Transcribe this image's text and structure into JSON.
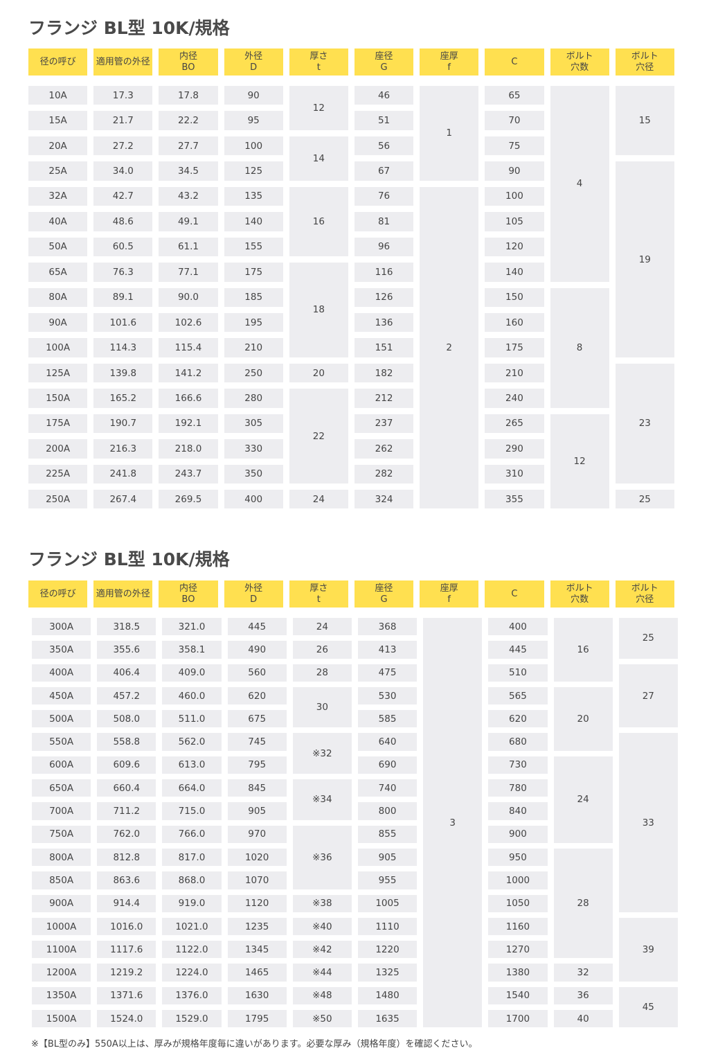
{
  "table1": {
    "title": "フランジ BL型 10K/規格",
    "headers": [
      [
        "径の呼び"
      ],
      [
        "適用管の外径"
      ],
      [
        "内径",
        "BO"
      ],
      [
        "外径",
        "D"
      ],
      [
        "厚さ",
        "t"
      ],
      [
        "座径",
        "G"
      ],
      [
        "座厚",
        "f"
      ],
      [
        "C"
      ],
      [
        "ボルト",
        "穴数"
      ],
      [
        "ボルト",
        "穴径"
      ]
    ],
    "cells": [
      {
        "t": "10A",
        "c": 1,
        "r": 1
      },
      {
        "t": "17.3",
        "c": 2,
        "r": 1
      },
      {
        "t": "17.8",
        "c": 3,
        "r": 1
      },
      {
        "t": "90",
        "c": 4,
        "r": 1
      },
      {
        "t": "12",
        "c": 5,
        "r": 1,
        "rs": 2
      },
      {
        "t": "46",
        "c": 6,
        "r": 1
      },
      {
        "t": "1",
        "c": 7,
        "r": 1,
        "rs": 4
      },
      {
        "t": "65",
        "c": 8,
        "r": 1
      },
      {
        "t": "4",
        "c": 9,
        "r": 1,
        "rs": 8
      },
      {
        "t": "15",
        "c": 10,
        "r": 1,
        "rs": 3
      },
      {
        "t": "15A",
        "c": 1,
        "r": 2
      },
      {
        "t": "21.7",
        "c": 2,
        "r": 2
      },
      {
        "t": "22.2",
        "c": 3,
        "r": 2
      },
      {
        "t": "95",
        "c": 4,
        "r": 2
      },
      {
        "t": "51",
        "c": 6,
        "r": 2
      },
      {
        "t": "70",
        "c": 8,
        "r": 2
      },
      {
        "t": "20A",
        "c": 1,
        "r": 3
      },
      {
        "t": "27.2",
        "c": 2,
        "r": 3
      },
      {
        "t": "27.7",
        "c": 3,
        "r": 3
      },
      {
        "t": "100",
        "c": 4,
        "r": 3
      },
      {
        "t": "14",
        "c": 5,
        "r": 3,
        "rs": 2
      },
      {
        "t": "56",
        "c": 6,
        "r": 3
      },
      {
        "t": "75",
        "c": 8,
        "r": 3
      },
      {
        "t": "25A",
        "c": 1,
        "r": 4
      },
      {
        "t": "34.0",
        "c": 2,
        "r": 4
      },
      {
        "t": "34.5",
        "c": 3,
        "r": 4
      },
      {
        "t": "125",
        "c": 4,
        "r": 4
      },
      {
        "t": "67",
        "c": 6,
        "r": 4
      },
      {
        "t": "90",
        "c": 8,
        "r": 4
      },
      {
        "t": "19",
        "c": 10,
        "r": 4,
        "rs": 8
      },
      {
        "t": "32A",
        "c": 1,
        "r": 5
      },
      {
        "t": "42.7",
        "c": 2,
        "r": 5
      },
      {
        "t": "43.2",
        "c": 3,
        "r": 5
      },
      {
        "t": "135",
        "c": 4,
        "r": 5
      },
      {
        "t": "16",
        "c": 5,
        "r": 5,
        "rs": 3
      },
      {
        "t": "76",
        "c": 6,
        "r": 5
      },
      {
        "t": "2",
        "c": 7,
        "r": 5,
        "rs": 13
      },
      {
        "t": "100",
        "c": 8,
        "r": 5
      },
      {
        "t": "40A",
        "c": 1,
        "r": 6
      },
      {
        "t": "48.6",
        "c": 2,
        "r": 6
      },
      {
        "t": "49.1",
        "c": 3,
        "r": 6
      },
      {
        "t": "140",
        "c": 4,
        "r": 6
      },
      {
        "t": "81",
        "c": 6,
        "r": 6
      },
      {
        "t": "105",
        "c": 8,
        "r": 6
      },
      {
        "t": "50A",
        "c": 1,
        "r": 7
      },
      {
        "t": "60.5",
        "c": 2,
        "r": 7
      },
      {
        "t": "61.1",
        "c": 3,
        "r": 7
      },
      {
        "t": "155",
        "c": 4,
        "r": 7
      },
      {
        "t": "96",
        "c": 6,
        "r": 7
      },
      {
        "t": "120",
        "c": 8,
        "r": 7
      },
      {
        "t": "65A",
        "c": 1,
        "r": 8
      },
      {
        "t": "76.3",
        "c": 2,
        "r": 8
      },
      {
        "t": "77.1",
        "c": 3,
        "r": 8
      },
      {
        "t": "175",
        "c": 4,
        "r": 8
      },
      {
        "t": "18",
        "c": 5,
        "r": 8,
        "rs": 4
      },
      {
        "t": "116",
        "c": 6,
        "r": 8
      },
      {
        "t": "140",
        "c": 8,
        "r": 8
      },
      {
        "t": "80A",
        "c": 1,
        "r": 9
      },
      {
        "t": "89.1",
        "c": 2,
        "r": 9
      },
      {
        "t": "90.0",
        "c": 3,
        "r": 9
      },
      {
        "t": "185",
        "c": 4,
        "r": 9
      },
      {
        "t": "126",
        "c": 6,
        "r": 9
      },
      {
        "t": "150",
        "c": 8,
        "r": 9
      },
      {
        "t": "8",
        "c": 9,
        "r": 9,
        "rs": 5
      },
      {
        "t": "90A",
        "c": 1,
        "r": 10
      },
      {
        "t": "101.6",
        "c": 2,
        "r": 10
      },
      {
        "t": "102.6",
        "c": 3,
        "r": 10
      },
      {
        "t": "195",
        "c": 4,
        "r": 10
      },
      {
        "t": "136",
        "c": 6,
        "r": 10
      },
      {
        "t": "160",
        "c": 8,
        "r": 10
      },
      {
        "t": "100A",
        "c": 1,
        "r": 11
      },
      {
        "t": "114.3",
        "c": 2,
        "r": 11
      },
      {
        "t": "115.4",
        "c": 3,
        "r": 11
      },
      {
        "t": "210",
        "c": 4,
        "r": 11
      },
      {
        "t": "151",
        "c": 6,
        "r": 11
      },
      {
        "t": "175",
        "c": 8,
        "r": 11
      },
      {
        "t": "125A",
        "c": 1,
        "r": 12
      },
      {
        "t": "139.8",
        "c": 2,
        "r": 12
      },
      {
        "t": "141.2",
        "c": 3,
        "r": 12
      },
      {
        "t": "250",
        "c": 4,
        "r": 12
      },
      {
        "t": "20",
        "c": 5,
        "r": 12
      },
      {
        "t": "182",
        "c": 6,
        "r": 12
      },
      {
        "t": "210",
        "c": 8,
        "r": 12
      },
      {
        "t": "23",
        "c": 10,
        "r": 12,
        "rs": 5
      },
      {
        "t": "150A",
        "c": 1,
        "r": 13
      },
      {
        "t": "165.2",
        "c": 2,
        "r": 13
      },
      {
        "t": "166.6",
        "c": 3,
        "r": 13
      },
      {
        "t": "280",
        "c": 4,
        "r": 13
      },
      {
        "t": "22",
        "c": 5,
        "r": 13,
        "rs": 4
      },
      {
        "t": "212",
        "c": 6,
        "r": 13
      },
      {
        "t": "240",
        "c": 8,
        "r": 13
      },
      {
        "t": "175A",
        "c": 1,
        "r": 14
      },
      {
        "t": "190.7",
        "c": 2,
        "r": 14
      },
      {
        "t": "192.1",
        "c": 3,
        "r": 14
      },
      {
        "t": "305",
        "c": 4,
        "r": 14
      },
      {
        "t": "237",
        "c": 6,
        "r": 14
      },
      {
        "t": "265",
        "c": 8,
        "r": 14
      },
      {
        "t": "12",
        "c": 9,
        "r": 14,
        "rs": 4
      },
      {
        "t": "200A",
        "c": 1,
        "r": 15
      },
      {
        "t": "216.3",
        "c": 2,
        "r": 15
      },
      {
        "t": "218.0",
        "c": 3,
        "r": 15
      },
      {
        "t": "330",
        "c": 4,
        "r": 15
      },
      {
        "t": "262",
        "c": 6,
        "r": 15
      },
      {
        "t": "290",
        "c": 8,
        "r": 15
      },
      {
        "t": "225A",
        "c": 1,
        "r": 16
      },
      {
        "t": "241.8",
        "c": 2,
        "r": 16
      },
      {
        "t": "243.7",
        "c": 3,
        "r": 16
      },
      {
        "t": "350",
        "c": 4,
        "r": 16
      },
      {
        "t": "282",
        "c": 6,
        "r": 16
      },
      {
        "t": "310",
        "c": 8,
        "r": 16
      },
      {
        "t": "250A",
        "c": 1,
        "r": 17
      },
      {
        "t": "267.4",
        "c": 2,
        "r": 17
      },
      {
        "t": "269.5",
        "c": 3,
        "r": 17
      },
      {
        "t": "400",
        "c": 4,
        "r": 17
      },
      {
        "t": "24",
        "c": 5,
        "r": 17
      },
      {
        "t": "324",
        "c": 6,
        "r": 17
      },
      {
        "t": "355",
        "c": 8,
        "r": 17
      },
      {
        "t": "25",
        "c": 10,
        "r": 17
      }
    ]
  },
  "table2": {
    "title": "フランジ BL型 10K/規格",
    "headers": [
      [
        "径の呼び"
      ],
      [
        "適用管の外径"
      ],
      [
        "内径",
        "BO"
      ],
      [
        "外径",
        "D"
      ],
      [
        "厚さ",
        "t"
      ],
      [
        "座径",
        "G"
      ],
      [
        "座厚",
        "f"
      ],
      [
        "C"
      ],
      [
        "ボルト",
        "穴数"
      ],
      [
        "ボルト",
        "穴径"
      ]
    ],
    "cells": [
      {
        "t": "300A",
        "c": 1,
        "r": 1
      },
      {
        "t": "318.5",
        "c": 2,
        "r": 1
      },
      {
        "t": "321.0",
        "c": 3,
        "r": 1
      },
      {
        "t": "445",
        "c": 4,
        "r": 1
      },
      {
        "t": "24",
        "c": 5,
        "r": 1
      },
      {
        "t": "368",
        "c": 6,
        "r": 1
      },
      {
        "t": "3",
        "c": 7,
        "r": 1,
        "rs": 18
      },
      {
        "t": "400",
        "c": 8,
        "r": 1
      },
      {
        "t": "16",
        "c": 9,
        "r": 1,
        "rs": 3
      },
      {
        "t": "25",
        "c": 10,
        "r": 1,
        "rs": 2
      },
      {
        "t": "350A",
        "c": 1,
        "r": 2
      },
      {
        "t": "355.6",
        "c": 2,
        "r": 2
      },
      {
        "t": "358.1",
        "c": 3,
        "r": 2
      },
      {
        "t": "490",
        "c": 4,
        "r": 2
      },
      {
        "t": "26",
        "c": 5,
        "r": 2
      },
      {
        "t": "413",
        "c": 6,
        "r": 2
      },
      {
        "t": "445",
        "c": 8,
        "r": 2
      },
      {
        "t": "400A",
        "c": 1,
        "r": 3
      },
      {
        "t": "406.4",
        "c": 2,
        "r": 3
      },
      {
        "t": "409.0",
        "c": 3,
        "r": 3
      },
      {
        "t": "560",
        "c": 4,
        "r": 3
      },
      {
        "t": "28",
        "c": 5,
        "r": 3
      },
      {
        "t": "475",
        "c": 6,
        "r": 3
      },
      {
        "t": "510",
        "c": 8,
        "r": 3
      },
      {
        "t": "27",
        "c": 10,
        "r": 3,
        "rs": 3
      },
      {
        "t": "450A",
        "c": 1,
        "r": 4
      },
      {
        "t": "457.2",
        "c": 2,
        "r": 4
      },
      {
        "t": "460.0",
        "c": 3,
        "r": 4
      },
      {
        "t": "620",
        "c": 4,
        "r": 4
      },
      {
        "t": "30",
        "c": 5,
        "r": 4,
        "rs": 2
      },
      {
        "t": "530",
        "c": 6,
        "r": 4
      },
      {
        "t": "565",
        "c": 8,
        "r": 4
      },
      {
        "t": "20",
        "c": 9,
        "r": 4,
        "rs": 3
      },
      {
        "t": "500A",
        "c": 1,
        "r": 5
      },
      {
        "t": "508.0",
        "c": 2,
        "r": 5
      },
      {
        "t": "511.0",
        "c": 3,
        "r": 5
      },
      {
        "t": "675",
        "c": 4,
        "r": 5
      },
      {
        "t": "585",
        "c": 6,
        "r": 5
      },
      {
        "t": "620",
        "c": 8,
        "r": 5
      },
      {
        "t": "550A",
        "c": 1,
        "r": 6
      },
      {
        "t": "558.8",
        "c": 2,
        "r": 6
      },
      {
        "t": "562.0",
        "c": 3,
        "r": 6
      },
      {
        "t": "745",
        "c": 4,
        "r": 6
      },
      {
        "t": "※32",
        "c": 5,
        "r": 6,
        "rs": 2
      },
      {
        "t": "640",
        "c": 6,
        "r": 6
      },
      {
        "t": "680",
        "c": 8,
        "r": 6
      },
      {
        "t": "33",
        "c": 10,
        "r": 6,
        "rs": 8
      },
      {
        "t": "600A",
        "c": 1,
        "r": 7
      },
      {
        "t": "609.6",
        "c": 2,
        "r": 7
      },
      {
        "t": "613.0",
        "c": 3,
        "r": 7
      },
      {
        "t": "795",
        "c": 4,
        "r": 7
      },
      {
        "t": "690",
        "c": 6,
        "r": 7
      },
      {
        "t": "730",
        "c": 8,
        "r": 7
      },
      {
        "t": "24",
        "c": 9,
        "r": 7,
        "rs": 4
      },
      {
        "t": "650A",
        "c": 1,
        "r": 8
      },
      {
        "t": "660.4",
        "c": 2,
        "r": 8
      },
      {
        "t": "664.0",
        "c": 3,
        "r": 8
      },
      {
        "t": "845",
        "c": 4,
        "r": 8
      },
      {
        "t": "※34",
        "c": 5,
        "r": 8,
        "rs": 2
      },
      {
        "t": "740",
        "c": 6,
        "r": 8
      },
      {
        "t": "780",
        "c": 8,
        "r": 8
      },
      {
        "t": "700A",
        "c": 1,
        "r": 9
      },
      {
        "t": "711.2",
        "c": 2,
        "r": 9
      },
      {
        "t": "715.0",
        "c": 3,
        "r": 9
      },
      {
        "t": "905",
        "c": 4,
        "r": 9
      },
      {
        "t": "800",
        "c": 6,
        "r": 9
      },
      {
        "t": "840",
        "c": 8,
        "r": 9
      },
      {
        "t": "750A",
        "c": 1,
        "r": 10
      },
      {
        "t": "762.0",
        "c": 2,
        "r": 10
      },
      {
        "t": "766.0",
        "c": 3,
        "r": 10
      },
      {
        "t": "970",
        "c": 4,
        "r": 10
      },
      {
        "t": "※36",
        "c": 5,
        "r": 10,
        "rs": 3
      },
      {
        "t": "855",
        "c": 6,
        "r": 10
      },
      {
        "t": "900",
        "c": 8,
        "r": 10
      },
      {
        "t": "800A",
        "c": 1,
        "r": 11
      },
      {
        "t": "812.8",
        "c": 2,
        "r": 11
      },
      {
        "t": "817.0",
        "c": 3,
        "r": 11
      },
      {
        "t": "1020",
        "c": 4,
        "r": 11
      },
      {
        "t": "905",
        "c": 6,
        "r": 11
      },
      {
        "t": "950",
        "c": 8,
        "r": 11
      },
      {
        "t": "28",
        "c": 9,
        "r": 11,
        "rs": 5
      },
      {
        "t": "850A",
        "c": 1,
        "r": 12
      },
      {
        "t": "863.6",
        "c": 2,
        "r": 12
      },
      {
        "t": "868.0",
        "c": 3,
        "r": 12
      },
      {
        "t": "1070",
        "c": 4,
        "r": 12
      },
      {
        "t": "955",
        "c": 6,
        "r": 12
      },
      {
        "t": "1000",
        "c": 8,
        "r": 12
      },
      {
        "t": "900A",
        "c": 1,
        "r": 13
      },
      {
        "t": "914.4",
        "c": 2,
        "r": 13
      },
      {
        "t": "919.0",
        "c": 3,
        "r": 13
      },
      {
        "t": "1120",
        "c": 4,
        "r": 13
      },
      {
        "t": "※38",
        "c": 5,
        "r": 13
      },
      {
        "t": "1005",
        "c": 6,
        "r": 13
      },
      {
        "t": "1050",
        "c": 8,
        "r": 13
      },
      {
        "t": "1000A",
        "c": 1,
        "r": 14
      },
      {
        "t": "1016.0",
        "c": 2,
        "r": 14
      },
      {
        "t": "1021.0",
        "c": 3,
        "r": 14
      },
      {
        "t": "1235",
        "c": 4,
        "r": 14
      },
      {
        "t": "※40",
        "c": 5,
        "r": 14
      },
      {
        "t": "1110",
        "c": 6,
        "r": 14
      },
      {
        "t": "1160",
        "c": 8,
        "r": 14
      },
      {
        "t": "39",
        "c": 10,
        "r": 14,
        "rs": 3
      },
      {
        "t": "1100A",
        "c": 1,
        "r": 15
      },
      {
        "t": "1117.6",
        "c": 2,
        "r": 15
      },
      {
        "t": "1122.0",
        "c": 3,
        "r": 15
      },
      {
        "t": "1345",
        "c": 4,
        "r": 15
      },
      {
        "t": "※42",
        "c": 5,
        "r": 15
      },
      {
        "t": "1220",
        "c": 6,
        "r": 15
      },
      {
        "t": "1270",
        "c": 8,
        "r": 15
      },
      {
        "t": "1200A",
        "c": 1,
        "r": 16
      },
      {
        "t": "1219.2",
        "c": 2,
        "r": 16
      },
      {
        "t": "1224.0",
        "c": 3,
        "r": 16
      },
      {
        "t": "1465",
        "c": 4,
        "r": 16
      },
      {
        "t": "※44",
        "c": 5,
        "r": 16
      },
      {
        "t": "1325",
        "c": 6,
        "r": 16
      },
      {
        "t": "1380",
        "c": 8,
        "r": 16
      },
      {
        "t": "32",
        "c": 9,
        "r": 16
      },
      {
        "t": "1350A",
        "c": 1,
        "r": 17
      },
      {
        "t": "1371.6",
        "c": 2,
        "r": 17
      },
      {
        "t": "1376.0",
        "c": 3,
        "r": 17
      },
      {
        "t": "1630",
        "c": 4,
        "r": 17
      },
      {
        "t": "※48",
        "c": 5,
        "r": 17
      },
      {
        "t": "1480",
        "c": 6,
        "r": 17
      },
      {
        "t": "1540",
        "c": 8,
        "r": 17
      },
      {
        "t": "36",
        "c": 9,
        "r": 17
      },
      {
        "t": "45",
        "c": 10,
        "r": 17,
        "rs": 2
      },
      {
        "t": "1500A",
        "c": 1,
        "r": 18
      },
      {
        "t": "1524.0",
        "c": 2,
        "r": 18
      },
      {
        "t": "1529.0",
        "c": 3,
        "r": 18
      },
      {
        "t": "1795",
        "c": 4,
        "r": 18
      },
      {
        "t": "※50",
        "c": 5,
        "r": 18
      },
      {
        "t": "1635",
        "c": 6,
        "r": 18
      },
      {
        "t": "1700",
        "c": 8,
        "r": 18
      },
      {
        "t": "40",
        "c": 9,
        "r": 18
      }
    ]
  },
  "note": "※【BL型のみ】550A以上は、厚みが規格年度毎に違いがあります。必要な厚み（規格年度）を確認ください。"
}
